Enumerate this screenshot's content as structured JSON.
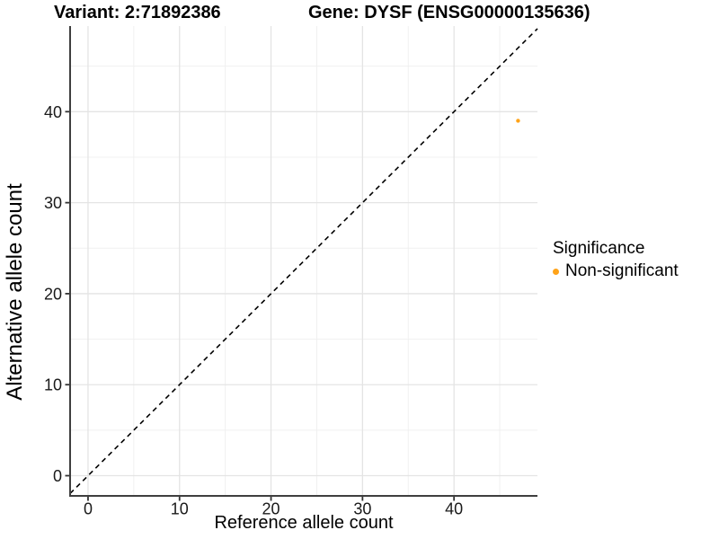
{
  "chart_data": {
    "type": "scatter",
    "titles": {
      "left": "Variant: 2:71892386",
      "right": "Gene: DYSF (ENSG00000135636)"
    },
    "xlabel": "Reference allele count",
    "ylabel": "Alternative allele count",
    "x_ticks": [
      0,
      10,
      20,
      30,
      40
    ],
    "y_ticks": [
      0,
      10,
      20,
      30,
      40
    ],
    "x_minor_ticks": [
      5,
      15,
      25,
      35,
      45
    ],
    "y_minor_ticks": [
      5,
      15,
      25,
      35,
      45
    ],
    "xlim": [
      -1.96,
      49.12
    ],
    "ylim": [
      -2.22,
      49.41
    ],
    "grid": "major+minor",
    "background": "#ffffff",
    "identity_line": {
      "slope": 1,
      "intercept": 0,
      "linetype": "dashed",
      "color": "#000000"
    },
    "series": [
      {
        "name": "Non-significant",
        "color": "#FFA319",
        "points": [
          {
            "x": 47,
            "y": 39
          }
        ]
      }
    ],
    "legend": {
      "title": "Significance",
      "position": "right",
      "items": [
        {
          "label": "Non-significant",
          "color": "#FFA319"
        }
      ]
    }
  }
}
